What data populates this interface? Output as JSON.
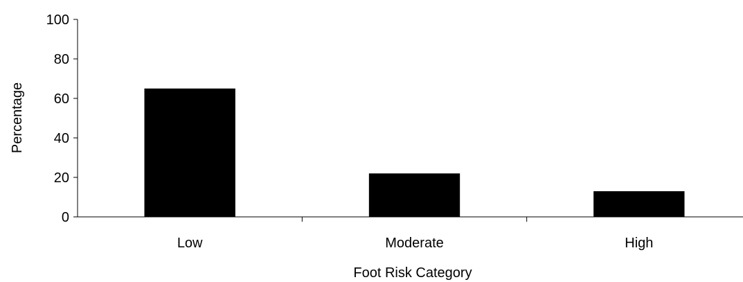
{
  "chart_data": {
    "type": "bar",
    "categories": [
      "Low",
      "Moderate",
      "High"
    ],
    "values": [
      65,
      22,
      13
    ],
    "xlabel": "Foot Risk Category",
    "ylabel": "Percentage",
    "ylim": [
      0,
      100
    ],
    "yticks": [
      0,
      20,
      40,
      60,
      80,
      100
    ],
    "grid": false,
    "bar_color": "#000000"
  }
}
